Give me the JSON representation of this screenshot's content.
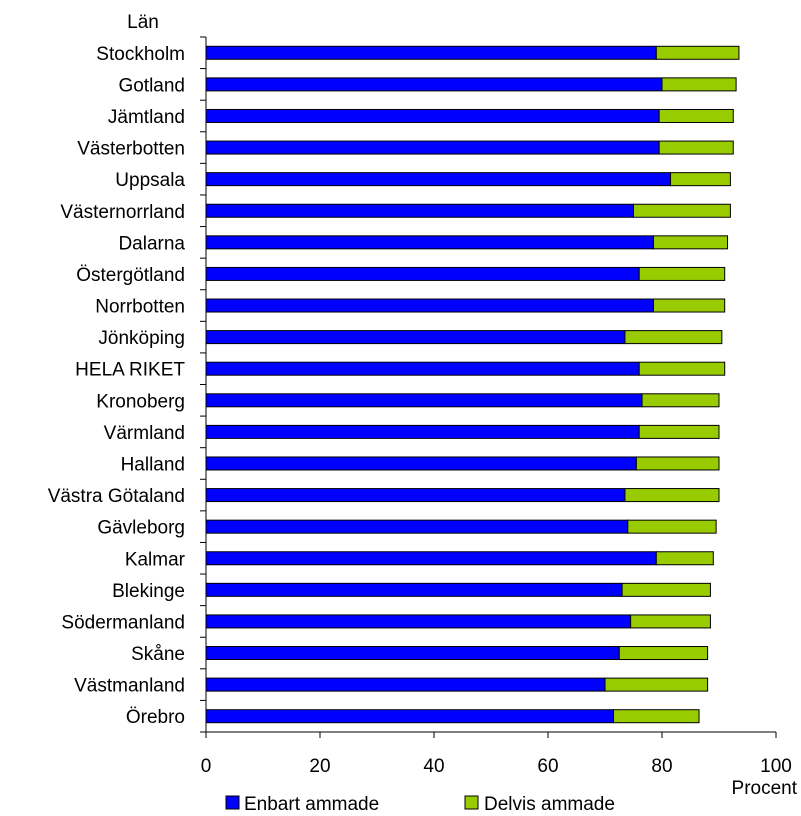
{
  "chart_data": {
    "type": "bar",
    "orientation": "horizontal",
    "stacked": true,
    "ylabel": "Län",
    "xlabel": "Procent",
    "xlim": [
      0,
      100
    ],
    "xticks": [
      0,
      20,
      40,
      60,
      80,
      100
    ],
    "legend_position": "bottom",
    "grid": false,
    "categories": [
      "Stockholm",
      "Gotland",
      "Jämtland",
      "Västerbotten",
      "Uppsala",
      "Västernorrland",
      "Dalarna",
      "Östergötland",
      "Norrbotten",
      "Jönköping",
      "HELA RIKET",
      "Kronoberg",
      "Värmland",
      "Halland",
      "Västra Götaland",
      "Gävleborg",
      "Kalmar",
      "Blekinge",
      "Södermanland",
      "Skåne",
      "Västmanland",
      "Örebro"
    ],
    "series": [
      {
        "name": "Enbart ammade",
        "color": "#0000ff",
        "values": [
          79,
          80,
          79.5,
          79.5,
          81.5,
          75,
          78.5,
          76,
          78.5,
          73.5,
          76,
          76.5,
          76,
          75.5,
          73.5,
          74,
          79,
          73,
          74.5,
          72.5,
          70,
          71.5
        ]
      },
      {
        "name": "Delvis ammade",
        "color": "#99cc00",
        "values": [
          14.5,
          13,
          13,
          13,
          10.5,
          17,
          13,
          15,
          12.5,
          17,
          15,
          13.5,
          14,
          14.5,
          16.5,
          15.5,
          10,
          15.5,
          14,
          15.5,
          18,
          15
        ]
      }
    ]
  }
}
